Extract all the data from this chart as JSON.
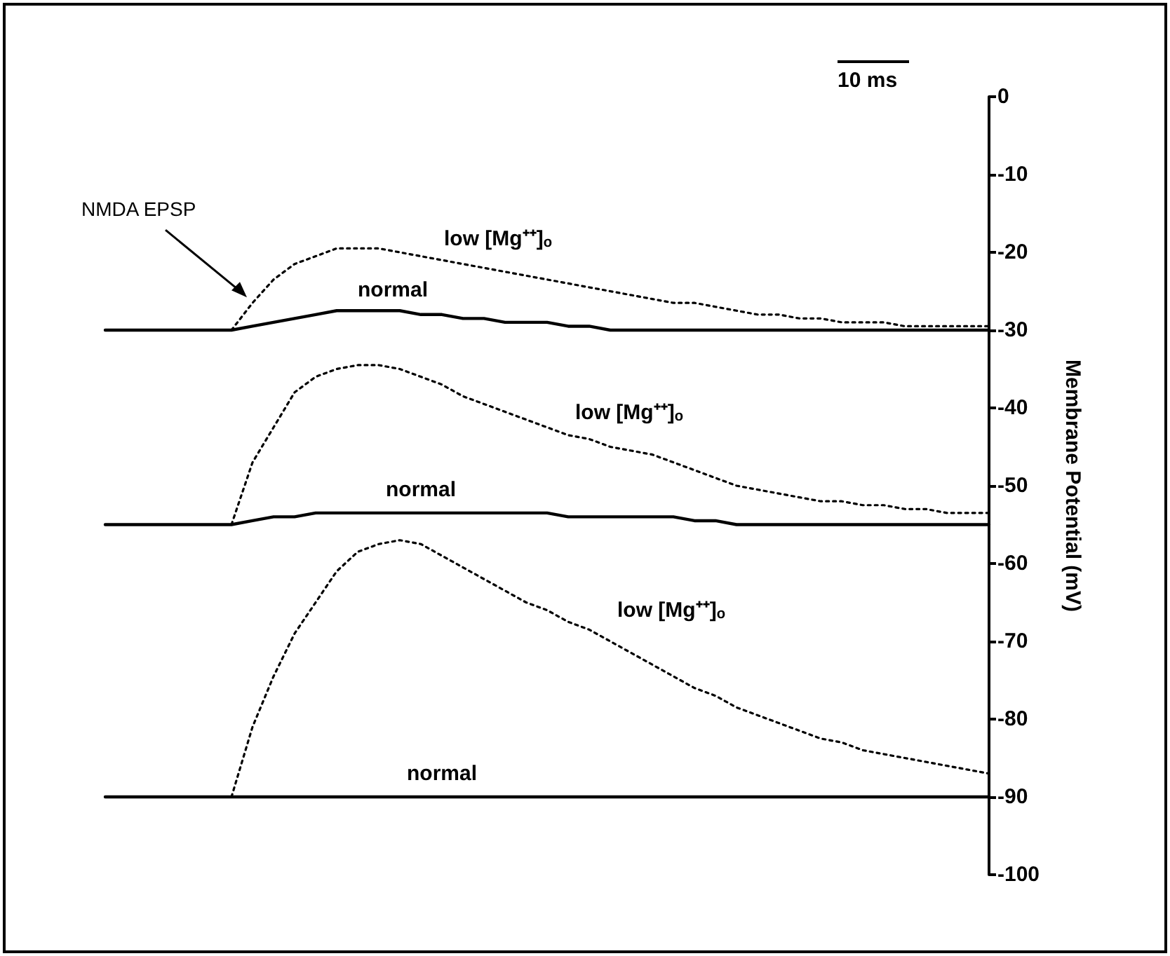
{
  "chart_data": {
    "type": "line",
    "ylabel": "Membrane Potential (mV)",
    "ylim": [
      -100,
      0
    ],
    "yticks": [
      0,
      -10,
      -20,
      -30,
      -40,
      -50,
      -60,
      -70,
      -80,
      -90,
      -100
    ],
    "categories": [
      null,
      null,
      null,
      null,
      null,
      null,
      null,
      null,
      null,
      null,
      null,
      null,
      null,
      null,
      null,
      null,
      null,
      null,
      null,
      null,
      null,
      null,
      null,
      null,
      null,
      null,
      null,
      null,
      null,
      null,
      null,
      null,
      null,
      null,
      null,
      null,
      null,
      null,
      null,
      null,
      null,
      null,
      null
    ],
    "tick_labels": "y",
    "grid": false,
    "legend": false,
    "marker": "none",
    "annotations": [
      "NMDA EPSP",
      "10 ms"
    ],
    "series": [
      {
        "name": "normal",
        "color": "#000000",
        "line_style": "solid",
        "values": [
          -30,
          -30,
          -30,
          -30,
          -30,
          -30,
          -30,
          -29.5,
          -29,
          -28.5,
          -28,
          -27.5,
          -27.5,
          -27.5,
          -27.5,
          -28,
          -28,
          -28.5,
          -28.5,
          -29,
          -29,
          -29,
          -29.5,
          -29.5,
          -30,
          -30,
          -30,
          -30,
          -30,
          -30,
          -30,
          -30,
          -30,
          -30,
          -30,
          -30,
          -30,
          -30,
          -30,
          -30,
          -30,
          -30,
          -30
        ]
      },
      {
        "name": "low [Mg⁺⁺]ₒ",
        "color": "#000000",
        "line_style": "dotted",
        "values": [
          null,
          null,
          null,
          null,
          null,
          null,
          -30,
          -26.5,
          -23.5,
          -21.5,
          -20.5,
          -19.5,
          -19.5,
          -19.5,
          -20,
          -20.5,
          -21,
          -21.5,
          -22,
          -22.5,
          -23,
          -23.5,
          -24,
          -24.5,
          -25,
          -25.5,
          -26,
          -26.5,
          -26.5,
          -27,
          -27.5,
          -28,
          -28,
          -28.5,
          -28.5,
          -29,
          -29,
          -29,
          -29.5,
          -29.5,
          -29.5,
          -29.5,
          -29.5
        ]
      },
      {
        "name": "normal",
        "color": "#000000",
        "line_style": "solid",
        "values": [
          -55,
          -55,
          -55,
          -55,
          -55,
          -55,
          -55,
          -54.5,
          -54,
          -54,
          -53.5,
          -53.5,
          -53.5,
          -53.5,
          -53.5,
          -53.5,
          -53.5,
          -53.5,
          -53.5,
          -53.5,
          -53.5,
          -53.5,
          -54,
          -54,
          -54,
          -54,
          -54,
          -54,
          -54.5,
          -54.5,
          -55,
          -55,
          -55,
          -55,
          -55,
          -55,
          -55,
          -55,
          -55,
          -55,
          -55,
          -55,
          -55
        ]
      },
      {
        "name": "low [Mg⁺⁺]ₒ",
        "color": "#000000",
        "line_style": "dotted",
        "values": [
          null,
          null,
          null,
          null,
          null,
          null,
          -55,
          -47,
          -42.5,
          -38,
          -36,
          -35,
          -34.5,
          -34.5,
          -35,
          -36,
          -37,
          -38.5,
          -39.5,
          -40.5,
          -41.5,
          -42.5,
          -43.5,
          -44,
          -45,
          -45.5,
          -46,
          -47,
          -48,
          -49,
          -50,
          -50.5,
          -51,
          -51.5,
          -52,
          -52,
          -52.5,
          -52.5,
          -53,
          -53,
          -53.5,
          -53.5,
          -53.5
        ]
      },
      {
        "name": "normal",
        "color": "#000000",
        "line_style": "solid",
        "values": [
          -90,
          -90,
          -90,
          -90,
          -90,
          -90,
          -90,
          -90,
          -90,
          -90,
          -90,
          -90,
          -90,
          -90,
          -90,
          -90,
          -90,
          -90,
          -90,
          -90,
          -90,
          -90,
          -90,
          -90,
          -90,
          -90,
          -90,
          -90,
          -90,
          -90,
          -90,
          -90,
          -90,
          -90,
          -90,
          -90,
          -90,
          -90,
          -90,
          -90,
          -90,
          -90,
          -90
        ]
      },
      {
        "name": "low [Mg⁺⁺]ₒ",
        "color": "#000000",
        "line_style": "dotted",
        "values": [
          null,
          null,
          null,
          null,
          null,
          null,
          -90,
          -81,
          -74.5,
          -69,
          -65,
          -61,
          -58.5,
          -57.5,
          -57,
          -57.5,
          -59,
          -60.5,
          -62,
          -63.5,
          -65,
          -66,
          -67.5,
          -68.5,
          -70,
          -71.5,
          -73,
          -74.5,
          -76,
          -77,
          -78.5,
          -79.5,
          -80.5,
          -81.5,
          -82.5,
          -83,
          -84,
          -84.5,
          -85,
          -85.5,
          -86,
          -86.5,
          -87
        ]
      }
    ]
  }
}
